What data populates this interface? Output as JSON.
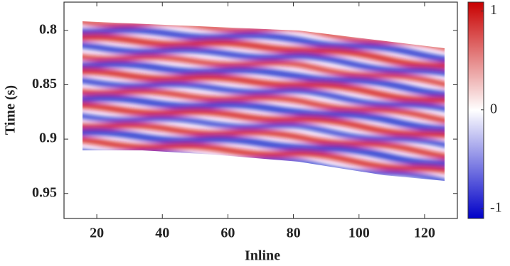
{
  "chart_data": {
    "type": "image",
    "x_label": "Inline",
    "y_label": "Time (s)",
    "xlim": [
      10,
      130
    ],
    "xticks": [
      20,
      40,
      60,
      80,
      100,
      120
    ],
    "ylim": [
      0.973,
      0.774
    ],
    "yticks": [
      0.8,
      0.85,
      0.9,
      0.95
    ],
    "colorbar": {
      "lim": [
        -1.1,
        1.09
      ],
      "ticks": [
        1,
        0,
        -1
      ],
      "colors": [
        "#0000c8",
        "#ffffff",
        "#c80000"
      ]
    }
  }
}
